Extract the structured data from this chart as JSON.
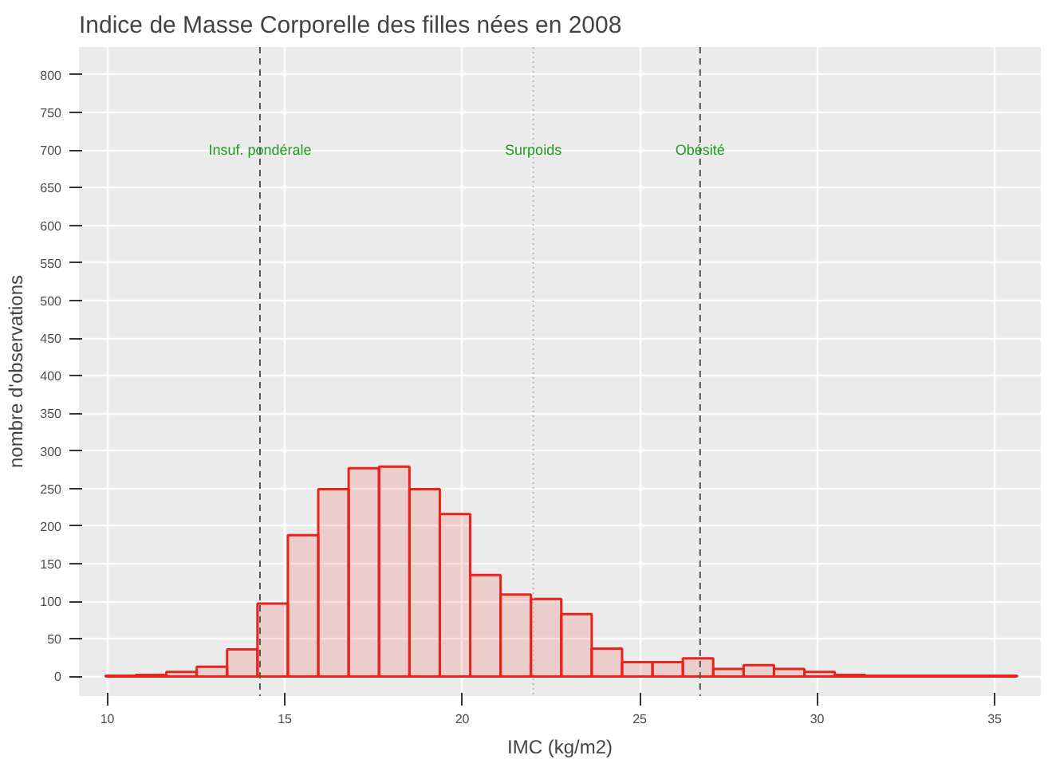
{
  "chart_data": {
    "type": "histogram",
    "title": "Indice de Masse Corporelle des filles nées en 2008",
    "xlabel": "IMC (kg/m2)",
    "ylabel": "nombre d'observations",
    "bins": [
      9.95,
      10.806,
      11.662,
      12.518,
      13.374,
      14.23,
      15.086,
      15.942,
      16.798,
      17.654,
      18.51,
      19.366,
      20.222,
      21.078,
      21.934,
      22.79,
      23.646,
      24.502,
      25.358,
      26.214,
      27.07,
      27.926,
      28.782,
      29.638,
      30.494,
      31.35,
      32.206,
      33.062,
      33.918,
      34.774,
      35.63
    ],
    "values": [
      1,
      2,
      6,
      13,
      36,
      97,
      188,
      249,
      277,
      279,
      249,
      216,
      135,
      109,
      103,
      83,
      37,
      19,
      19,
      24,
      10,
      15,
      10,
      6,
      2,
      1,
      1,
      1,
      1,
      1
    ],
    "color": "#e8231a",
    "xlim": [
      9.2,
      36.3
    ],
    "ylim": [
      -26,
      837
    ],
    "xticks": [
      10,
      15,
      20,
      25,
      30,
      35
    ],
    "yticks": [
      0,
      50,
      100,
      150,
      200,
      250,
      300,
      350,
      400,
      450,
      500,
      550,
      600,
      650,
      700,
      750,
      800
    ],
    "grid": true,
    "ref_lines": [
      {
        "axis": "x",
        "value": 14.3,
        "color": "#555555",
        "line_style": "dashed",
        "label": "Insuf. pondérale"
      },
      {
        "axis": "x",
        "value": 22,
        "color": "#bbbbbb",
        "line_style": "dotted",
        "label": "Surpoids"
      },
      {
        "axis": "x",
        "value": 26.7,
        "color": "#555555",
        "line_style": "dashed",
        "label": "Obésité"
      }
    ]
  }
}
